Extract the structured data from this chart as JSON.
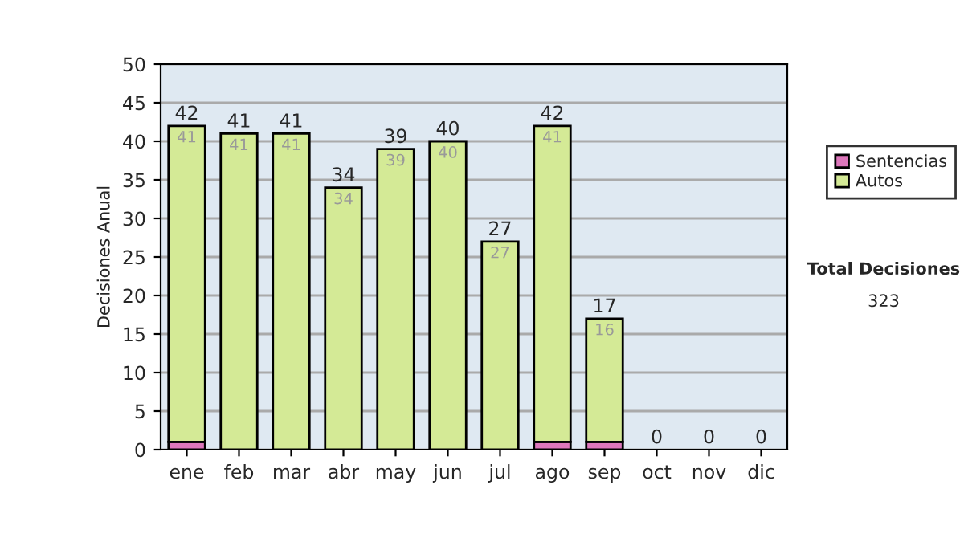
{
  "chart_data": {
    "type": "bar",
    "stacked": true,
    "ylabel": "Decisiones Anual",
    "categories": [
      "ene",
      "feb",
      "mar",
      "abr",
      "may",
      "jun",
      "jul",
      "ago",
      "sep",
      "oct",
      "nov",
      "dic"
    ],
    "series": [
      {
        "name": "Sentencias",
        "color": "#dd77bb",
        "values": [
          1,
          0,
          0,
          0,
          0,
          0,
          0,
          1,
          1,
          0,
          0,
          0
        ]
      },
      {
        "name": "Autos",
        "color": "#d4ea96",
        "values": [
          41,
          41,
          41,
          34,
          39,
          40,
          27,
          41,
          16,
          0,
          0,
          0
        ],
        "value_labels": [
          "41",
          "41",
          "41",
          "34",
          "39",
          "40",
          "27",
          "41",
          "16",
          null,
          null,
          null
        ]
      }
    ],
    "totals": [
      "42",
      "41",
      "41",
      "34",
      "39",
      "40",
      "27",
      "42",
      "17",
      "0",
      "0",
      "0"
    ],
    "ylim": [
      0,
      50
    ],
    "yticks": [
      0,
      5,
      10,
      15,
      20,
      25,
      30,
      35,
      40,
      45,
      50
    ],
    "grid": "y",
    "legend": "right",
    "annotations": [
      "Total Decisiones",
      "323"
    ]
  }
}
